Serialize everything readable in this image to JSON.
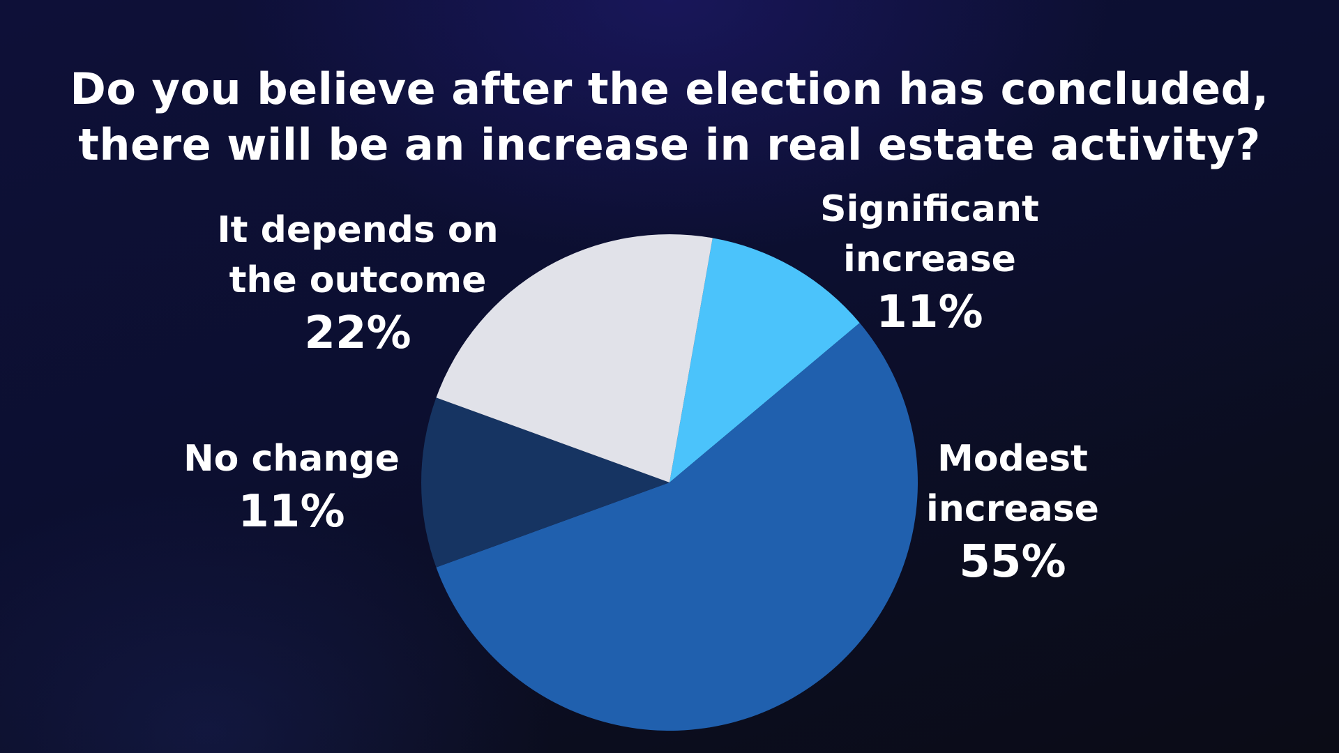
{
  "title_lines": [
    "Do you believe after the election has concluded,",
    "there will be an increase in real estate activity?"
  ],
  "chart_data": {
    "type": "pie",
    "title": "Do you believe after the election has concluded, there will be an increase in real estate activity?",
    "start_angle_deg": 10,
    "direction": "clockwise",
    "slices": [
      {
        "label_lines": [
          "Significant",
          "increase"
        ],
        "value": 11,
        "value_label": "11%",
        "color": "#4bc3fb"
      },
      {
        "label_lines": [
          "Modest",
          "increase"
        ],
        "value": 55,
        "value_label": "55%",
        "color": "#2060ae"
      },
      {
        "label_lines": [
          "No change"
        ],
        "value": 11,
        "value_label": "11%",
        "color": "#163462"
      },
      {
        "label_lines": [
          "It depends on",
          "the outcome"
        ],
        "value": 22,
        "value_label": "22%",
        "color": "#e1e2e9"
      }
    ]
  }
}
